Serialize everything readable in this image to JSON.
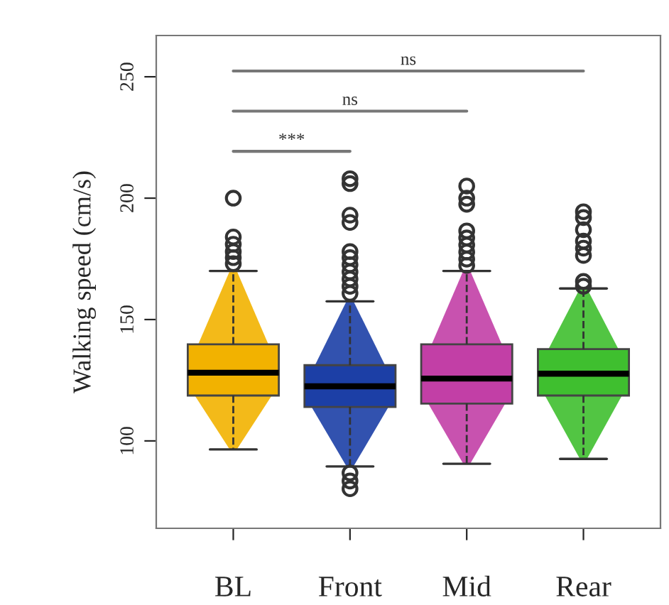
{
  "chart_data": {
    "type": "box",
    "ylabel": "Walking speed (cm/s)",
    "categories": [
      "BL",
      "Front",
      "Mid",
      "Rear"
    ],
    "colors": [
      "#f2b200",
      "#1c3fa6",
      "#c23fa6",
      "#3fbf2f"
    ],
    "boxes": [
      {
        "low": 96.5,
        "q1": 118.7,
        "median": 128.1,
        "q3": 139.8,
        "high": 170,
        "outliers": [
          200,
          184,
          181,
          178,
          175.5,
          173
        ]
      },
      {
        "low": 89.5,
        "q1": 114,
        "median": 122.5,
        "q3": 131.2,
        "high": 157.5,
        "outliers": [
          208,
          206,
          193,
          190,
          178,
          175.5,
          172.6,
          169.6,
          166.7,
          163.7,
          160.8,
          86.8,
          83.5,
          80.3
        ]
      },
      {
        "low": 90.6,
        "q1": 115.4,
        "median": 125.7,
        "q3": 139.8,
        "high": 170,
        "outliers": [
          205,
          200,
          197.5,
          186.5,
          183.6,
          180.7,
          177.8,
          174.9,
          172.3
        ]
      },
      {
        "low": 92.6,
        "q1": 118.7,
        "median": 127.7,
        "q3": 137.8,
        "high": 162.8,
        "outliers": [
          194.4,
          192,
          187,
          182.3,
          179.4,
          176.4,
          165.7,
          163.7
        ]
      }
    ],
    "ylim": [
      64,
      267
    ],
    "yticks": [
      100,
      150,
      200,
      250
    ],
    "grid": false,
    "legend": false,
    "annotations": [
      "***",
      "ns",
      "ns"
    ]
  }
}
